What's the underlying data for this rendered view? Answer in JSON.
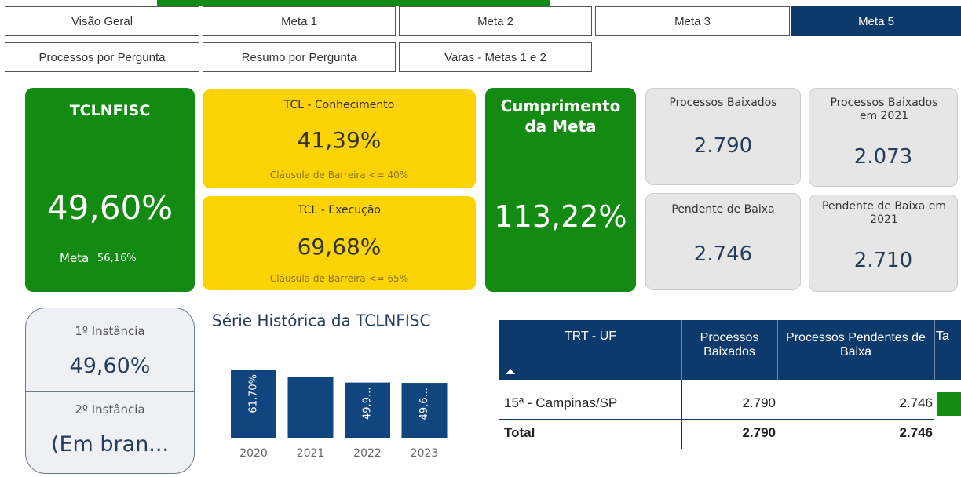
{
  "tabs": [
    "Visão Geral",
    "Meta 1",
    "Meta 2",
    "Meta 3",
    "Meta 5"
  ],
  "subtabs": [
    "Processos por Pergunta",
    "Resumo por Pergunta",
    "Varas - Metas 1 e 2"
  ],
  "cards": {
    "tclnfisc": {
      "title": "TCLNFISC",
      "value": "49,60%",
      "meta_label": "Meta",
      "meta_value": "56,16%"
    },
    "tcl_conhecimento": {
      "title": "TCL - Conhecimento",
      "value": "41,39%",
      "note": "Cláusula de Barreira <= 40%"
    },
    "tcl_execucao": {
      "title": "TCL - Execução",
      "value": "69,68%",
      "note": "Cláusula de Barreira <= 65%"
    },
    "cumprimento": {
      "title": "Cumprimento da Meta",
      "value": "113,22%"
    },
    "baixados": {
      "title": "Processos Baixados",
      "value": "2.790"
    },
    "baixados_2021": {
      "title": "Processos Baixados em 2021",
      "value": "2.073"
    },
    "pendente": {
      "title": "Pendente de Baixa",
      "value": "2.746"
    },
    "pendente_2021": {
      "title": "Pendente de Baixa em 2021",
      "value": "2.710"
    },
    "instancia1": {
      "title": "1º Instância",
      "value": "49,60%"
    },
    "instancia2": {
      "title": "2º Instância",
      "value": "(Em bran..."
    }
  },
  "chart_data": {
    "type": "bar",
    "title": "Série Histórica da TCLNFISC",
    "categories": [
      "2020",
      "2021",
      "2022",
      "2023"
    ],
    "values": [
      61.7,
      55.3,
      49.9,
      49.6
    ],
    "value_labels": [
      "61,70%",
      null,
      "49,9...",
      "49,6..."
    ],
    "color": "#114580"
  },
  "table": {
    "columns": [
      "TRT - UF",
      "Processos Baixados",
      "Processos Pendentes de Baixa",
      "Ta"
    ],
    "rows": [
      [
        "15ª - Campinas/SP",
        "2.790",
        "2.746"
      ]
    ],
    "total": [
      "Total",
      "2.790",
      "2.746"
    ]
  }
}
